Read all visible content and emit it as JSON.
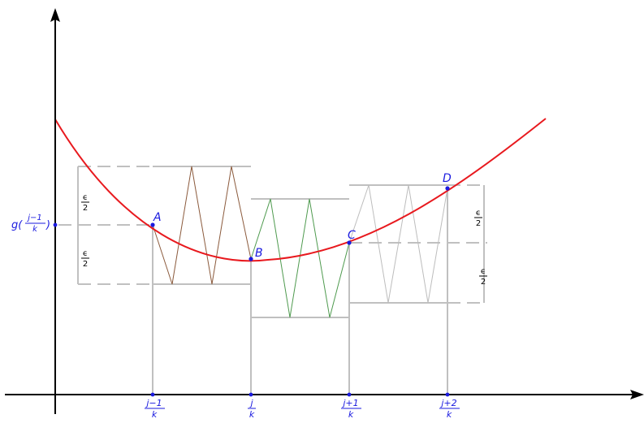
{
  "colors": {
    "curve": "#e8191e",
    "points": "#1a1adf",
    "guides": "#c0c0c0",
    "brown": "#8b5a3c",
    "green": "#4e9a4e",
    "grey_zigzag": "#bdbdbd",
    "axes": "#000000"
  },
  "points": {
    "A": "A",
    "B": "B",
    "C": "C",
    "D": "D"
  },
  "x_ticks": [
    {
      "num": "j−1",
      "den": "k"
    },
    {
      "num": "j",
      "den": "k"
    },
    {
      "num": "j+1",
      "den": "k"
    },
    {
      "num": "j+2",
      "den": "k"
    }
  ],
  "y_label": {
    "prefix": "g(",
    "num": "j−1",
    "den": "k",
    "suffix": ")"
  },
  "epsilon_labels": {
    "num": "ϵ",
    "den": "2"
  }
}
